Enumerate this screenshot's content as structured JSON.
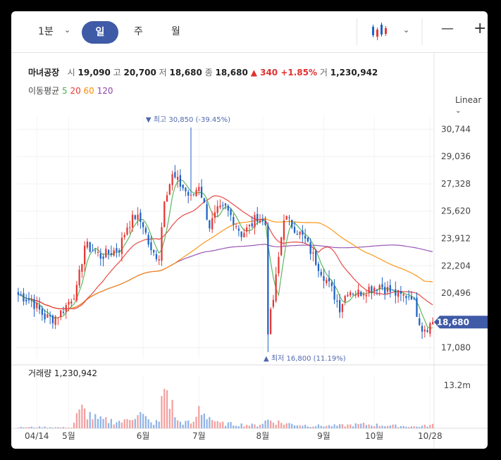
{
  "toolbar": {
    "interval": "1분",
    "periods": [
      "일",
      "주",
      "월"
    ],
    "active_period": "일",
    "minus": "—",
    "plus": "+"
  },
  "info": {
    "name": "마녀공장",
    "open_label": "시",
    "open": "19,090",
    "high_label": "고",
    "high": "20,700",
    "low_label": "저",
    "low": "18,680",
    "close_label": "종",
    "close": "18,680",
    "change": "▲ 340 +1.85%",
    "volume_label": "거",
    "volume": "1,230,942"
  },
  "ma_legend": {
    "label": "이동평균",
    "items": [
      {
        "name": "5",
        "color": "#4caf50"
      },
      {
        "name": "20",
        "color": "#e53935"
      },
      {
        "name": "60",
        "color": "#fb8c00"
      },
      {
        "name": "120",
        "color": "#8e44ad"
      }
    ]
  },
  "scale": "Linear",
  "colors": {
    "up": "#e53935",
    "down": "#1e63c6",
    "accent": "#3f5aa6"
  },
  "chart_data": {
    "type": "candlestick",
    "y_ticks": [
      "30,744",
      "29,036",
      "27,328",
      "25,620",
      "23,912",
      "22,204",
      "20,496",
      "17,080"
    ],
    "y_tick_values": [
      30744,
      29036,
      27328,
      25620,
      23912,
      22204,
      20496,
      17080
    ],
    "ylim": [
      16400,
      31600
    ],
    "current_price_label": "18,680",
    "current_price": 18680,
    "max_annotation": "최고 30,850 (-39.45%)",
    "min_annotation": "최저 16,800 (11.19%)",
    "x_labels": [
      "04/14",
      "5월",
      "6월",
      "7월",
      "8월",
      "9월",
      "10월",
      "10/28"
    ],
    "x_label_days": [
      7,
      19,
      47,
      68,
      92,
      115,
      134,
      155
    ],
    "volume_label": "거래량 1,230,942",
    "volume_tick": "13.2m",
    "volume_tick_value": 13200000,
    "days": 157,
    "anchors": {
      "day": [
        0,
        5,
        10,
        13,
        16,
        18,
        20,
        22,
        25,
        28,
        31,
        34,
        38,
        41,
        44,
        47,
        50,
        53,
        55,
        58,
        62,
        65,
        68,
        72,
        75,
        78,
        81,
        84,
        87,
        90,
        93,
        94,
        96,
        100,
        104,
        108,
        111,
        114,
        118,
        121,
        124,
        128,
        132,
        136,
        140,
        144,
        148,
        150,
        152,
        154,
        156
      ],
      "close": [
        20400,
        20000,
        19000,
        18900,
        19300,
        19700,
        20200,
        20700,
        23500,
        23200,
        22800,
        23000,
        23300,
        24700,
        25300,
        24800,
        23000,
        22800,
        26500,
        27800,
        27100,
        26400,
        27300,
        24700,
        25600,
        25800,
        25100,
        24200,
        24600,
        25300,
        24800,
        18200,
        20100,
        25300,
        24600,
        23800,
        22800,
        21900,
        20700,
        19600,
        20700,
        20500,
        20800,
        21000,
        20600,
        20300,
        20400,
        19300,
        18300,
        18400,
        18680
      ]
    },
    "volume_anchors": {
      "day": [
        0,
        10,
        20,
        22,
        24,
        30,
        40,
        45,
        50,
        53,
        55,
        60,
        66,
        68,
        75,
        90,
        94,
        100,
        110,
        120,
        130,
        150,
        156
      ],
      "value": [
        0.3,
        0.4,
        0.2,
        3.5,
        5.5,
        2.5,
        2.0,
        5.0,
        1.5,
        2.0,
        13.0,
        2.0,
        1.5,
        6.0,
        1.5,
        0.9,
        2.5,
        1.5,
        0.8,
        0.8,
        1.2,
        0.5,
        1.0
      ]
    }
  }
}
